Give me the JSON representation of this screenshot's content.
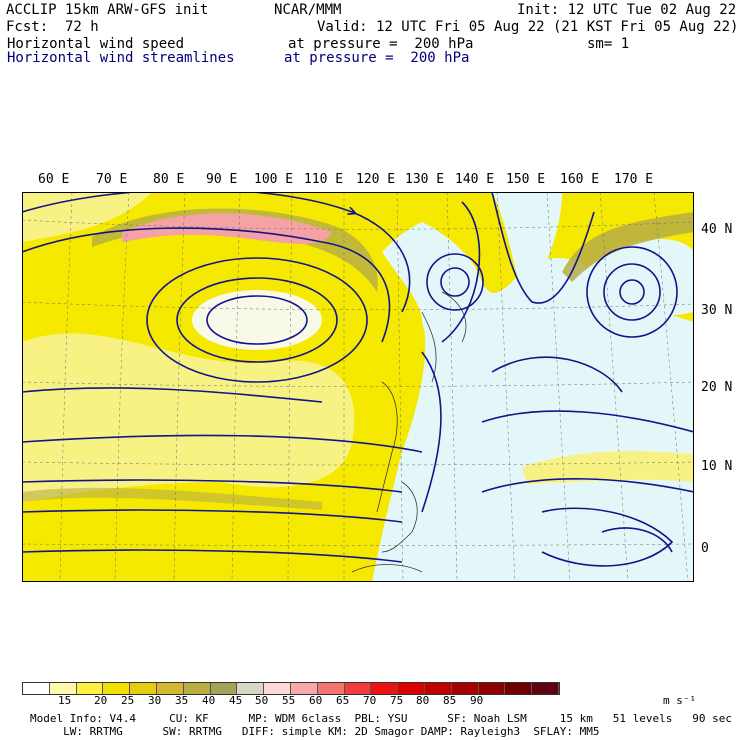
{
  "header": {
    "model": "ACCLIP 15km ARW-GFS init",
    "center": "NCAR/MMM",
    "init": "Init: 12 UTC Tue 02 Aug 22",
    "fcst_label": "Fcst:",
    "fcst_value": "72 h",
    "valid": "Valid: 12 UTC Fri 05 Aug 22 (21 KST Fri 05 Aug 22)",
    "field1": "Horizontal wind speed",
    "field1_level": "at pressure =  200 hPa",
    "field1_sm": "sm= 1",
    "field2": "Horizontal wind streamlines",
    "field2_level": "at pressure =  200 hPa"
  },
  "axes": {
    "longitudes": [
      "60 E",
      "70 E",
      "80 E",
      "90 E",
      "100 E",
      "110 E",
      "120 E",
      "130 E",
      "140 E",
      "150 E",
      "160 E",
      "170 E"
    ],
    "latitudes": [
      "40 N",
      "30 N",
      "20 N",
      "10 N",
      "0"
    ]
  },
  "colorbar": {
    "ticks": [
      "15",
      "20",
      "25",
      "30",
      "35",
      "40",
      "45",
      "50",
      "55",
      "60",
      "65",
      "70",
      "75",
      "80",
      "85",
      "90"
    ],
    "unit": "m s⁻¹",
    "colors": [
      "#ffffff",
      "#fff9b0",
      "#ffef40",
      "#f3e000",
      "#e6cc10",
      "#d4b830",
      "#b9ac43",
      "#a4a35a",
      "#d8d6c4",
      "#fcd9d5",
      "#f9a8a9",
      "#f57470",
      "#f23b3b",
      "#ee1111",
      "#dd0000",
      "#c30000",
      "#a80000",
      "#8e0000",
      "#6f0000",
      "#600010"
    ]
  },
  "footer": {
    "line1": "Model Info: V4.4     CU: KF      MP: WDM 6class  PBL: YSU      SF: Noah LSM     15 km   51 levels   90 sec",
    "line2": "     LW: RRTMG      SW: RRTMG   DIFF: simple KM: 2D Smagor DAMP: Rayleigh3  SFLAY: MM5"
  },
  "map_colors": {
    "ocean_light": "#e3f7f8",
    "yellow": "#f5e900",
    "pale_yellow": "#f8f285",
    "khaki": "#b7ad46",
    "pink": "#f5a2a5",
    "streamline": "#13138c",
    "land": "#d6b9a0"
  }
}
